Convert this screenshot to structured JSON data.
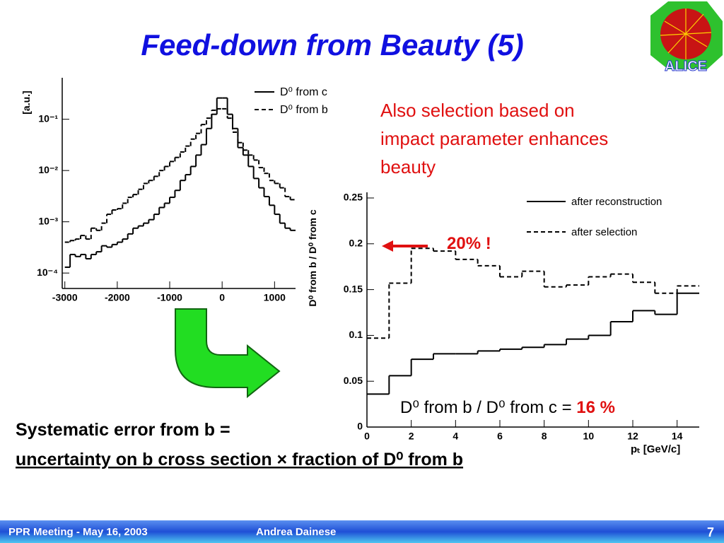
{
  "title": "Feed-down from Beauty (5)",
  "logo": "ALICE",
  "note": [
    "Also selection based on",
    "impact parameter enhances",
    "beauty"
  ],
  "annotation": "20% !",
  "ratio_text": {
    "text": "D⁰ from b / D⁰ from c = ",
    "value": "16 %"
  },
  "systematic": [
    "Systematic error from b =",
    "uncertainty on b cross section × fraction of D⁰ from b"
  ],
  "footer": {
    "meeting": "PPR Meeting - May 16, 2003",
    "author": "Andrea Dainese",
    "page": "7"
  },
  "chart_data": [
    {
      "type": "histogram",
      "ylabel": "[a.u.]",
      "log_y": true,
      "xlim": [
        -3050,
        1400
      ],
      "xticks": [
        -3000,
        -2000,
        -1000,
        0,
        1000
      ],
      "ylim": [
        5e-05,
        0.5
      ],
      "yticks": [
        {
          "value": 0.0001,
          "label": "10⁻⁴"
        },
        {
          "value": 0.001,
          "label": "10⁻³"
        },
        {
          "value": 0.01,
          "label": "10⁻²"
        },
        {
          "value": 0.1,
          "label": "10⁻¹"
        }
      ],
      "bins": [
        -3000,
        -2900,
        -2800,
        -2700,
        -2600,
        -2500,
        -2400,
        -2300,
        -2200,
        -2100,
        -2000,
        -1900,
        -1800,
        -1700,
        -1600,
        -1500,
        -1400,
        -1300,
        -1200,
        -1100,
        -1000,
        -900,
        -800,
        -700,
        -600,
        -500,
        -400,
        -300,
        -200,
        -100,
        0,
        100,
        200,
        300,
        400,
        500,
        600,
        700,
        800,
        900,
        1000,
        1100,
        1200,
        1300,
        1400
      ],
      "series": [
        {
          "name": "D⁰ from c",
          "color": "#000000",
          "line_style": "solid",
          "values": [
            0.00013,
            0.00023,
            0.00021,
            0.00023,
            0.00019,
            0.00023,
            0.00026,
            0.00034,
            0.00032,
            0.00036,
            0.0004,
            0.00046,
            0.00058,
            0.00075,
            0.00083,
            0.00094,
            0.0011,
            0.0014,
            0.0019,
            0.0023,
            0.003,
            0.0041,
            0.0064,
            0.0083,
            0.012,
            0.02,
            0.032,
            0.066,
            0.125,
            0.26,
            0.26,
            0.125,
            0.066,
            0.028,
            0.02,
            0.012,
            0.007,
            0.0046,
            0.0031,
            0.0021,
            0.0014,
            0.00094,
            0.00075,
            0.00068
          ]
        },
        {
          "name": "D⁰ from b",
          "color": "#000000",
          "line_style": "dashed",
          "values": [
            0.0004,
            0.00043,
            0.00046,
            0.00054,
            0.00046,
            0.00075,
            0.00068,
            0.00094,
            0.0014,
            0.0017,
            0.0018,
            0.0023,
            0.003,
            0.0034,
            0.0043,
            0.0056,
            0.0064,
            0.0077,
            0.01,
            0.012,
            0.015,
            0.018,
            0.023,
            0.03,
            0.041,
            0.053,
            0.079,
            0.105,
            0.15,
            0.16,
            0.16,
            0.105,
            0.056,
            0.035,
            0.025,
            0.02,
            0.016,
            0.0114,
            0.0088,
            0.0064,
            0.0056,
            0.0046,
            0.0031,
            0.0027
          ]
        }
      ]
    },
    {
      "type": "histogram",
      "ylabel": "D⁰ from b / D⁰ from c",
      "xlabel": "pₜ [GeV/c]",
      "log_y": false,
      "xlim": [
        0,
        15
      ],
      "xticks": [
        0,
        2,
        4,
        6,
        8,
        10,
        12,
        14
      ],
      "ylim": [
        0,
        0.25
      ],
      "yticks": [
        0,
        0.05,
        0.1,
        0.15,
        0.2,
        0.25
      ],
      "bins": [
        0,
        1,
        2,
        3,
        4,
        5,
        6,
        7,
        8,
        9,
        10,
        11,
        12,
        13,
        14,
        15
      ],
      "series": [
        {
          "name": "after reconstruction",
          "color": "#000000",
          "line_style": "solid",
          "values": [
            0.036,
            0.056,
            0.074,
            0.08,
            0.08,
            0.083,
            0.085,
            0.087,
            0.09,
            0.096,
            0.1,
            0.115,
            0.127,
            0.123,
            0.146
          ]
        },
        {
          "name": "after selection",
          "color": "#000000",
          "line_style": "dashed",
          "values": [
            0.097,
            0.157,
            0.195,
            0.192,
            0.183,
            0.176,
            0.164,
            0.17,
            0.153,
            0.155,
            0.164,
            0.167,
            0.158,
            0.146,
            0.154
          ]
        }
      ]
    }
  ]
}
